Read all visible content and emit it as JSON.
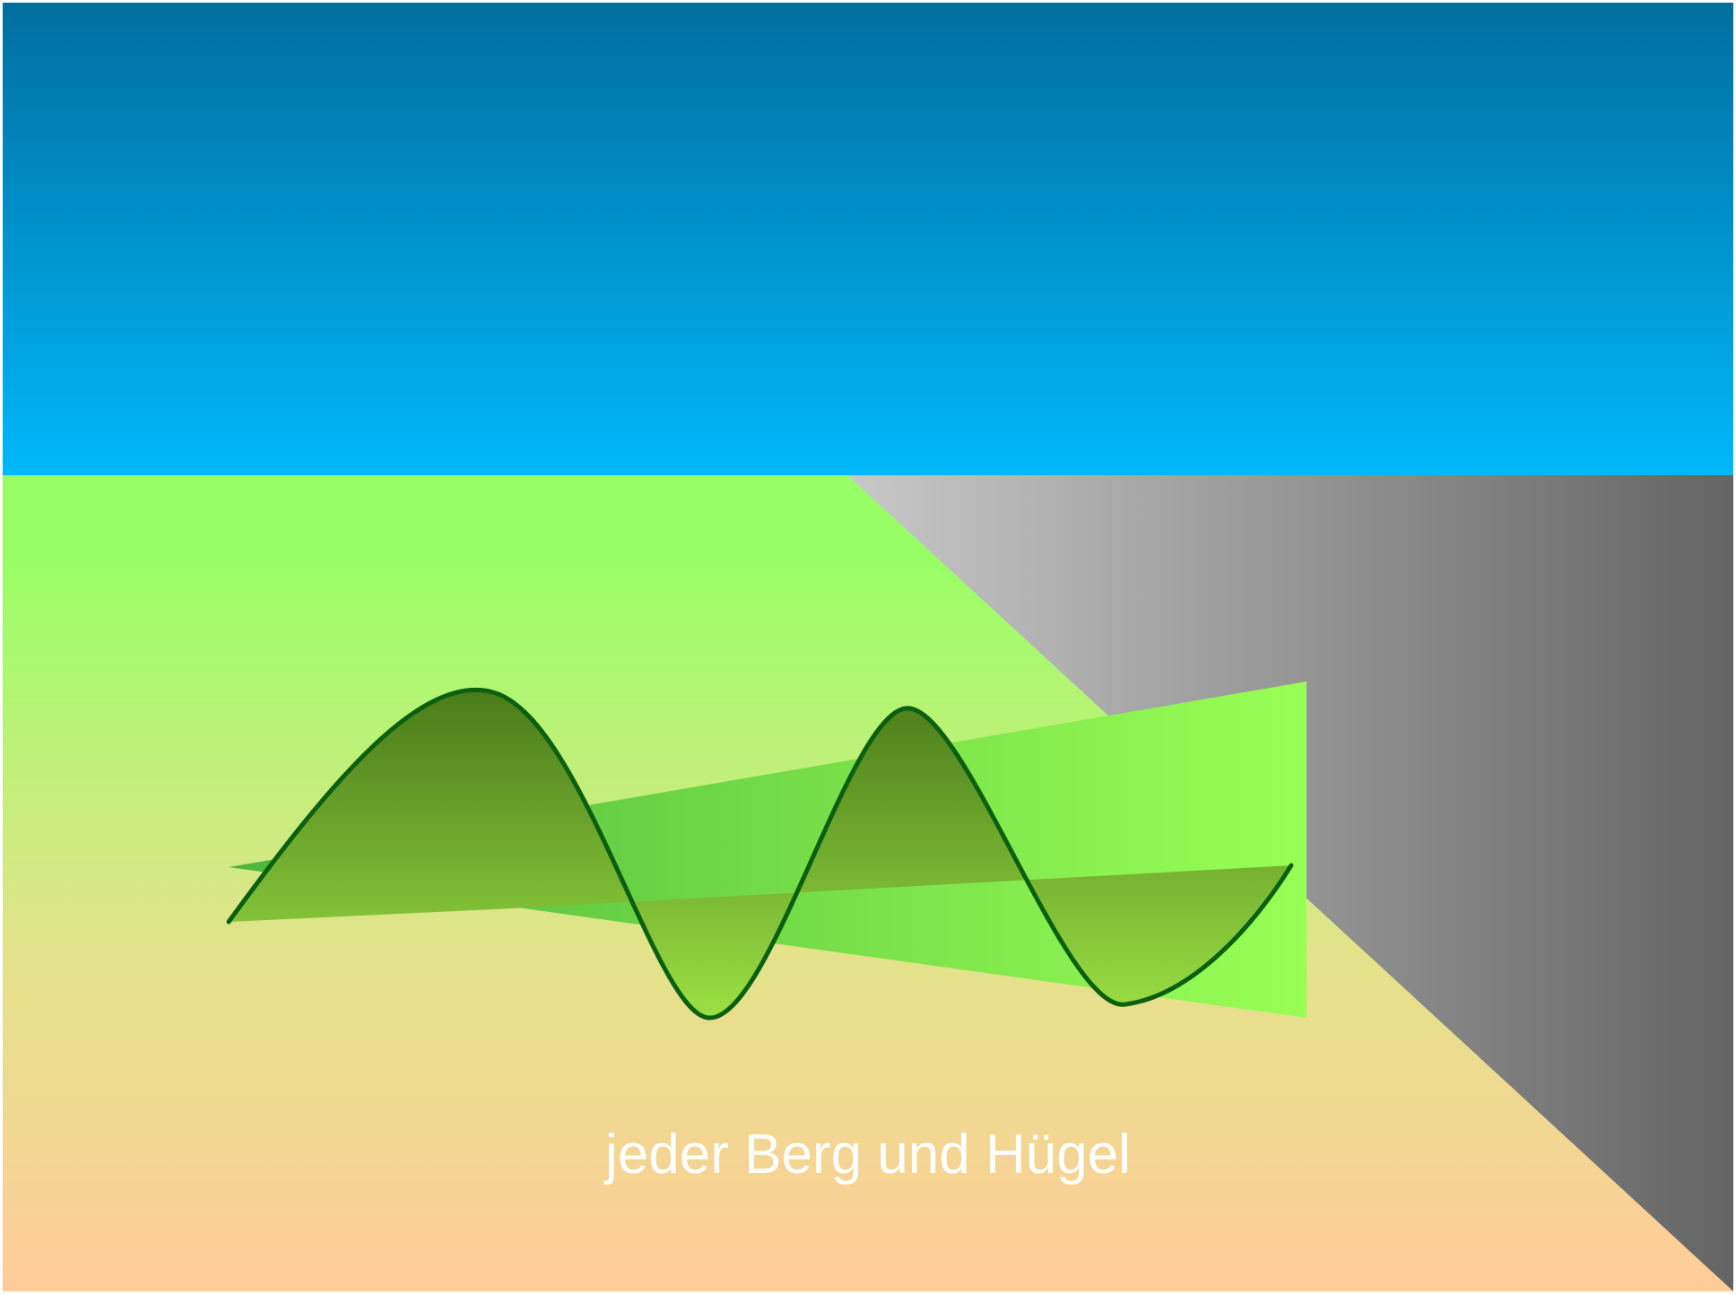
{
  "caption": "jeder Berg und Hügel",
  "colors": {
    "sky_top": "#006e9e",
    "sky_bottom": "#00b8fa",
    "ground_top": "#99ff66",
    "ground_middle": "#e2e38a",
    "ground_bottom": "#ffcc99",
    "cliff_light": "#c8c8c8",
    "cliff_dark": "#646464",
    "ribbon_dark": "#4cb63a",
    "ribbon_light": "#99ff55",
    "hill_top": "#4a7a1a",
    "hill_bottom": "#9be044",
    "hill_outline": "#0b6010",
    "caption_color": "#ffffff"
  },
  "elements": {
    "sky": "sky",
    "ground": "ground",
    "cliff": "cliff",
    "ribbon": "ribbon",
    "hills": "hills"
  }
}
